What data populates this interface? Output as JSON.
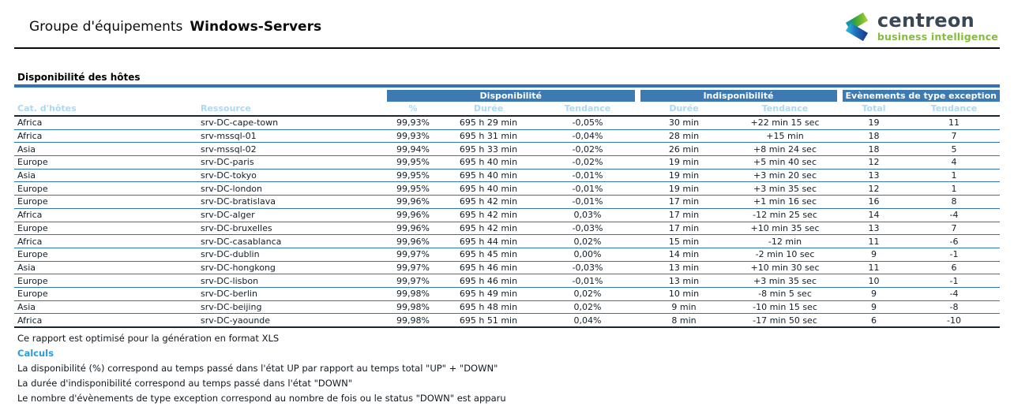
{
  "header": {
    "title_prefix": "Groupe d'équipements",
    "title_name": "Windows-Servers",
    "logo": {
      "brand": "centreon",
      "tagline": "business intelligence"
    }
  },
  "section": {
    "title": "Disponibilité des hôtes"
  },
  "table": {
    "group_headers": [
      {
        "label": "Disponibilité"
      },
      {
        "label": "Indisponibilité"
      },
      {
        "label": "Evènements de type exception"
      }
    ],
    "columns": [
      "Cat. d'hôtes",
      "Ressource",
      "%",
      "Durée",
      "Tendance",
      "Durée",
      "Tendance",
      "Total",
      "Tendance"
    ],
    "rows": [
      [
        "Africa",
        "srv-DC-cape-town",
        "99,93%",
        "695 h 29 min",
        "-0,05%",
        "30 min",
        "+22 min 15 sec",
        "19",
        "11"
      ],
      [
        "Africa",
        "srv-mssql-01",
        "99,93%",
        "695 h 31 min",
        "-0,04%",
        "28 min",
        "+15 min",
        "18",
        "7"
      ],
      [
        "Asia",
        "srv-mssql-02",
        "99,94%",
        "695 h 33 min",
        "-0,02%",
        "26 min",
        "+8 min 24 sec",
        "18",
        "5"
      ],
      [
        "Europe",
        "srv-DC-paris",
        "99,95%",
        "695 h 40 min",
        "-0,02%",
        "19 min",
        "+5 min 40 sec",
        "12",
        "4"
      ],
      [
        "Asia",
        "srv-DC-tokyo",
        "99,95%",
        "695 h 40 min",
        "-0,01%",
        "19 min",
        "+3 min 20 sec",
        "13",
        "1"
      ],
      [
        "Europe",
        "srv-DC-london",
        "99,95%",
        "695 h 40 min",
        "-0,01%",
        "19 min",
        "+3 min 35 sec",
        "12",
        "1"
      ],
      [
        "Europe",
        "srv-DC-bratislava",
        "99,96%",
        "695 h 42 min",
        "-0,01%",
        "17 min",
        "+1 min 16 sec",
        "16",
        "8"
      ],
      [
        "Africa",
        "srv-DC-alger",
        "99,96%",
        "695 h 42 min",
        "0,03%",
        "17 min",
        "-12 min 25 sec",
        "14",
        "-4"
      ],
      [
        "Europe",
        "srv-DC-bruxelles",
        "99,96%",
        "695 h 42 min",
        "-0,03%",
        "17 min",
        "+10 min 35 sec",
        "13",
        "7"
      ],
      [
        "Africa",
        "srv-DC-casablanca",
        "99,96%",
        "695 h 44 min",
        "0,02%",
        "15 min",
        "-12 min",
        "11",
        "-6"
      ],
      [
        "Europe",
        "srv-DC-dublin",
        "99,97%",
        "695 h 45 min",
        "0,00%",
        "14 min",
        "-2 min 10 sec",
        "9",
        "-1"
      ],
      [
        "Asia",
        "srv-DC-hongkong",
        "99,97%",
        "695 h 46 min",
        "-0,03%",
        "13 min",
        "+10 min 30 sec",
        "11",
        "6"
      ],
      [
        "Europe",
        "srv-DC-lisbon",
        "99,97%",
        "695 h 46 min",
        "-0,01%",
        "13 min",
        "+3 min 35 sec",
        "10",
        "-1"
      ],
      [
        "Europe",
        "srv-DC-berlin",
        "99,98%",
        "695 h 49 min",
        "0,02%",
        "10 min",
        "-8 min 5 sec",
        "9",
        "-4"
      ],
      [
        "Asia",
        "srv-DC-beijing",
        "99,98%",
        "695 h 48 min",
        "0,02%",
        "9 min",
        "-10 min 15 sec",
        "9",
        "-8"
      ],
      [
        "Africa",
        "srv-DC-yaounde",
        "99,98%",
        "695 h 51 min",
        "0,04%",
        "8 min",
        "-17 min 50 sec",
        "6",
        "-10"
      ]
    ]
  },
  "footer": {
    "note": "Ce rapport est optimisé pour la génération en format XLS",
    "calculs_label": "Calculs",
    "lines": [
      "La disponibilité (%) correspond au temps passé dans l'état UP par rapport au temps total \"UP\" + \"DOWN\"",
      "La durée d'indisponibilité correspond au temps passé dans l'état \"DOWN\"",
      "Le nombre d'évènements de type exception correspond au nombre de fois ou le status \"DOWN\" est apparu"
    ]
  },
  "colors": {
    "band_blue": "#3D7AB1",
    "column_header_blue": "#A9D9F5",
    "row_separator_blue": "#2E75B6",
    "section_bar_blue": "#2E74B5",
    "dark_border": "#1A2630",
    "calculs_blue": "#2E9BD9",
    "logo_slate": "#3A4754",
    "logo_green": "#83BD3C"
  }
}
